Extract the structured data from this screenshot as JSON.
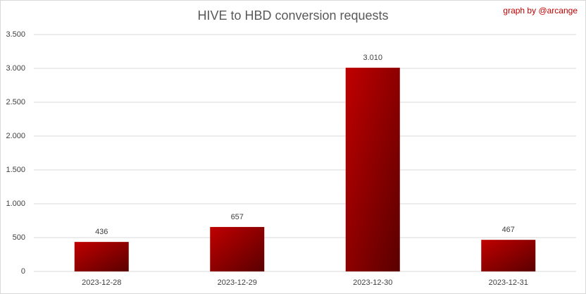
{
  "chart_data": {
    "type": "bar",
    "title": "HIVE to HBD conversion requests",
    "annotation": "graph by @arcange",
    "categories": [
      "2023-12-28",
      "2023-12-29",
      "2023-12-30",
      "2023-12-31"
    ],
    "values": [
      436,
      657,
      3010,
      467
    ],
    "value_labels": [
      "436",
      "657",
      "3.010",
      "467"
    ],
    "color": "#c00000",
    "ylim": [
      0,
      3500
    ],
    "yticks": [
      0,
      500,
      {
        "value": 1000,
        "label": "1.000"
      },
      {
        "value": 1500,
        "label": "1.500"
      },
      {
        "value": 2000,
        "label": "2.000"
      },
      {
        "value": 2500,
        "label": "2.500"
      },
      {
        "value": 3000,
        "label": "3.000"
      },
      {
        "value": 3500,
        "label": "3.500"
      }
    ],
    "grid": true
  }
}
